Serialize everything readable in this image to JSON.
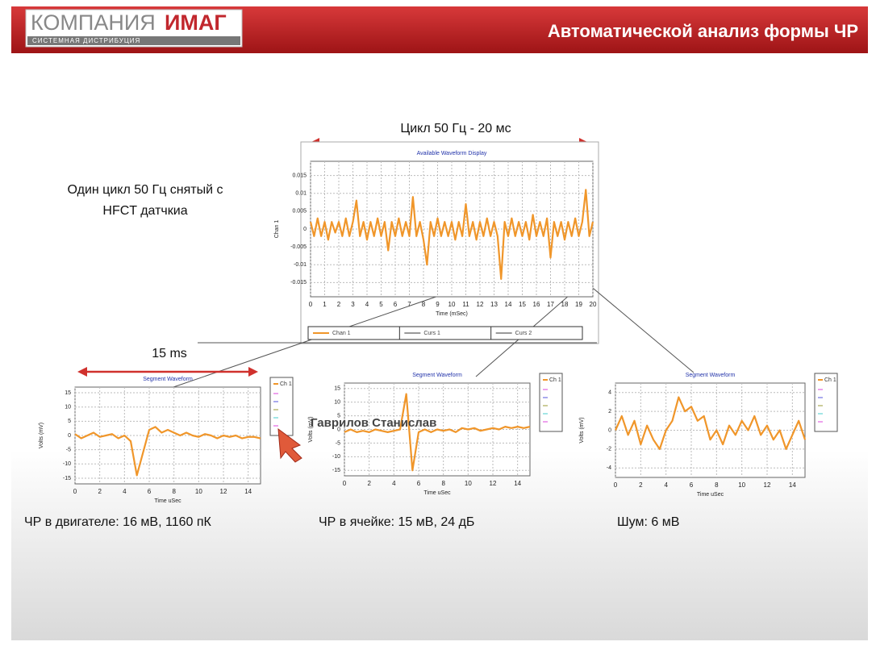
{
  "header": {
    "logo_main": "КОМПАНИЯ",
    "logo_accent": "ИМАГ",
    "logo_sub": "СИСТЕМНАЯ ДИСТРИБУЦИЯ",
    "title": "Автоматической анализ формы ЧР"
  },
  "annotations": {
    "cycle": "Цикл  50 Гц - 20 мс",
    "one_cycle": [
      "Один цикл  50 Гц снятый с",
      "HFCT датчкиа"
    ],
    "segment": "15 ms",
    "watermark": "Гаврилов Станислав"
  },
  "captions": [
    "ЧР в двигателе:  16 мВ, 1160 пК",
    "ЧР в ячейке:  15 мВ, 24 дБ",
    "Шум:  6 мВ"
  ],
  "charts": [
    {
      "type": "line",
      "title": "Available Waveform Display",
      "x_label": "Time (mSec)",
      "y_label": "Chan 1",
      "xlim": [
        0,
        20
      ],
      "xticks": [
        0,
        1,
        2,
        3,
        4,
        5,
        6,
        7,
        8,
        9,
        10,
        11,
        12,
        13,
        14,
        15,
        16,
        17,
        18,
        19,
        20
      ],
      "ylim": [
        -0.019,
        0.019
      ],
      "yticks": [
        -0.015,
        -0.01,
        -0.005,
        0,
        0.005,
        0.01,
        0.015
      ],
      "grid": true,
      "cursors": [
        "Curs 1",
        "Curs 2"
      ],
      "x": [
        0,
        0.25,
        0.5,
        0.75,
        1,
        1.25,
        1.5,
        1.75,
        2,
        2.25,
        2.5,
        2.75,
        3,
        3.25,
        3.5,
        3.75,
        4,
        4.25,
        4.5,
        4.75,
        5,
        5.25,
        5.5,
        5.75,
        6,
        6.25,
        6.5,
        6.75,
        7,
        7.25,
        7.5,
        7.75,
        8,
        8.25,
        8.5,
        8.75,
        9,
        9.25,
        9.5,
        9.75,
        10,
        10.25,
        10.5,
        10.75,
        11,
        11.25,
        11.5,
        11.75,
        12,
        12.25,
        12.5,
        12.75,
        13,
        13.25,
        13.5,
        13.75,
        14,
        14.25,
        14.5,
        14.75,
        15,
        15.25,
        15.5,
        15.75,
        16,
        16.25,
        16.5,
        16.75,
        17,
        17.25,
        17.5,
        17.75,
        18,
        18.25,
        18.5,
        18.75,
        19,
        19.25,
        19.5,
        19.75,
        20
      ],
      "series": [
        {
          "name": "Chan 1",
          "color": "#f0962a",
          "values": [
            0.002,
            -0.002,
            0.003,
            -0.002,
            0.002,
            -0.003,
            0.002,
            -0.001,
            0.002,
            -0.002,
            0.003,
            -0.002,
            0.002,
            0.008,
            -0.002,
            0.002,
            -0.003,
            0.002,
            -0.002,
            0.003,
            -0.002,
            0.002,
            -0.006,
            0.002,
            -0.002,
            0.003,
            -0.002,
            0.002,
            -0.002,
            0.009,
            -0.002,
            0.002,
            -0.003,
            -0.01,
            0.002,
            -0.002,
            0.003,
            -0.002,
            0.002,
            -0.002,
            0.002,
            -0.003,
            0.002,
            -0.002,
            0.007,
            -0.002,
            0.002,
            -0.003,
            0.002,
            -0.002,
            0.003,
            -0.002,
            0.002,
            -0.002,
            -0.014,
            0.002,
            -0.002,
            0.003,
            -0.002,
            0.002,
            -0.002,
            0.002,
            -0.003,
            0.004,
            -0.002,
            0.002,
            -0.002,
            0.003,
            -0.008,
            0.002,
            -0.002,
            0.002,
            -0.003,
            0.002,
            -0.002,
            0.003,
            -0.002,
            0.002,
            0.011,
            -0.002,
            0.002
          ]
        }
      ]
    },
    {
      "type": "line",
      "title": "Segment Waveform",
      "x_label": "Time uSec",
      "y_label": "Volts (mV)",
      "xlim": [
        0,
        15
      ],
      "xticks": [
        0,
        2,
        4,
        6,
        8,
        10,
        12,
        14
      ],
      "ylim": [
        -17,
        17
      ],
      "yticks": [
        -15,
        -10,
        -5,
        0,
        5,
        10,
        15
      ],
      "grid": true,
      "x": [
        0,
        0.5,
        1,
        1.5,
        2,
        2.5,
        3,
        3.5,
        4,
        4.5,
        5,
        5.5,
        6,
        6.5,
        7,
        7.5,
        8,
        8.5,
        9,
        9.5,
        10,
        10.5,
        11,
        11.5,
        12,
        12.5,
        13,
        13.5,
        14,
        14.5,
        15
      ],
      "series": [
        {
          "name": "Ch 1",
          "color": "#f0962a",
          "values": [
            0.5,
            -1,
            0,
            1,
            -0.5,
            0,
            0.5,
            -1,
            0,
            -2,
            -14,
            -6,
            2,
            3,
            1,
            2,
            1,
            0,
            1,
            0,
            -0.5,
            0.5,
            0,
            -1,
            0,
            -0.5,
            0,
            -1,
            -0.5,
            -0.5,
            -1
          ]
        }
      ]
    },
    {
      "type": "line",
      "title": "Segment Waveform",
      "x_label": "Time uSec",
      "y_label": "Volts (mV)",
      "xlim": [
        0,
        15
      ],
      "xticks": [
        0,
        2,
        4,
        6,
        8,
        10,
        12,
        14
      ],
      "ylim": [
        -17,
        17
      ],
      "yticks": [
        -15,
        -10,
        -5,
        0,
        5,
        10,
        15
      ],
      "grid": true,
      "x": [
        0,
        0.5,
        1,
        1.5,
        2,
        2.5,
        3,
        3.5,
        4,
        4.5,
        5,
        5.5,
        6,
        6.5,
        7,
        7.5,
        8,
        8.5,
        9,
        9.5,
        10,
        10.5,
        11,
        11.5,
        12,
        12.5,
        13,
        13.5,
        14,
        14.5,
        15
      ],
      "series": [
        {
          "name": "Ch 1",
          "color": "#f0962a",
          "values": [
            -1,
            0,
            -1,
            -0.5,
            -1,
            0,
            -0.5,
            -1,
            -0.5,
            0,
            13,
            -15,
            -1,
            0,
            -1,
            0,
            -0.5,
            0,
            -1,
            0.5,
            0,
            0.5,
            -0.5,
            0,
            0.5,
            0,
            1,
            0.5,
            1,
            0.5,
            1
          ]
        }
      ]
    },
    {
      "type": "line",
      "title": "Segment Waveform",
      "x_label": "Time uSec",
      "y_label": "Volts (mV)",
      "xlim": [
        0,
        15
      ],
      "xticks": [
        0,
        2,
        4,
        6,
        8,
        10,
        12,
        14
      ],
      "ylim": [
        -5,
        5
      ],
      "yticks": [
        -4,
        -2,
        0,
        2,
        4
      ],
      "grid": true,
      "x": [
        0,
        0.5,
        1,
        1.5,
        2,
        2.5,
        3,
        3.5,
        4,
        4.5,
        5,
        5.5,
        6,
        6.5,
        7,
        7.5,
        8,
        8.5,
        9,
        9.5,
        10,
        10.5,
        11,
        11.5,
        12,
        12.5,
        13,
        13.5,
        14,
        14.5,
        15
      ],
      "series": [
        {
          "name": "Ch 1",
          "color": "#f0962a",
          "values": [
            0,
            1.5,
            -0.5,
            1,
            -1.5,
            0.5,
            -1,
            -2,
            0,
            1,
            3.5,
            2,
            2.5,
            1,
            1.5,
            -1,
            0,
            -1.5,
            0.5,
            -0.5,
            1,
            0,
            1.5,
            -0.5,
            0.5,
            -1,
            0,
            -2,
            -0.5,
            1,
            -1
          ]
        }
      ]
    }
  ]
}
